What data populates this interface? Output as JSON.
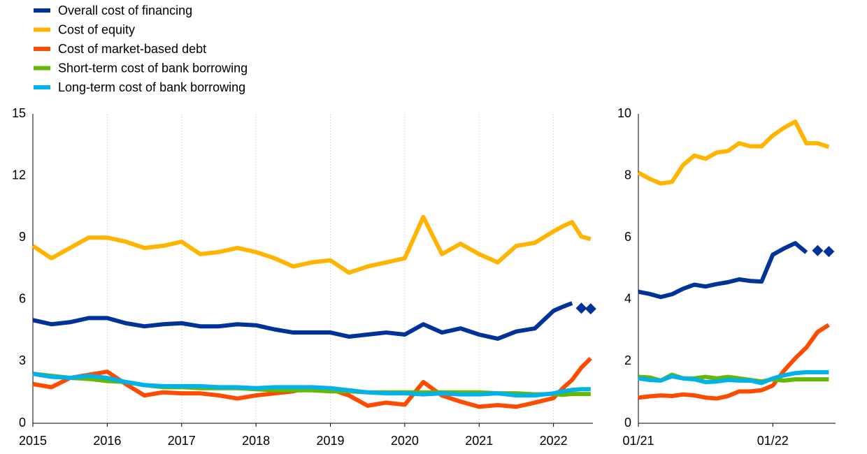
{
  "chart_data": [
    {
      "type": "line",
      "x": [
        2015,
        2015.25,
        2015.5,
        2015.75,
        2016,
        2016.25,
        2016.5,
        2016.75,
        2017,
        2017.25,
        2017.5,
        2017.75,
        2018,
        2018.25,
        2018.5,
        2018.75,
        2019,
        2019.25,
        2019.5,
        2019.75,
        2020,
        2020.25,
        2020.5,
        2020.75,
        2021,
        2021.25,
        2021.5,
        2021.75,
        2022,
        2022.125,
        2022.25,
        2022.375,
        2022.5
      ],
      "xlim": [
        2015,
        2022.53
      ],
      "xticks": [
        2015,
        2016,
        2017,
        2018,
        2019,
        2020,
        2021,
        2022
      ],
      "ylim": [
        0,
        15
      ],
      "yticks": [
        0,
        3,
        6,
        9,
        12,
        15
      ],
      "grid": true,
      "series": [
        {
          "name": "Overall cost of financing",
          "color": "#003299",
          "values": [
            5.0,
            4.8,
            4.9,
            5.1,
            5.1,
            4.85,
            4.7,
            4.8,
            4.85,
            4.7,
            4.7,
            4.8,
            4.75,
            4.55,
            4.4,
            4.4,
            4.4,
            4.2,
            4.3,
            4.4,
            4.3,
            4.8,
            4.4,
            4.6,
            4.3,
            4.1,
            4.45,
            4.6,
            5.45,
            5.65,
            5.82,
            null,
            null
          ],
          "markers": [
            null,
            null,
            null,
            null,
            null,
            null,
            null,
            null,
            null,
            null,
            null,
            null,
            null,
            null,
            null,
            null,
            null,
            null,
            null,
            null,
            null,
            null,
            null,
            null,
            null,
            null,
            null,
            null,
            null,
            null,
            null,
            5.58,
            5.55
          ]
        },
        {
          "name": "Cost of equity",
          "color": "#ffb400",
          "values": [
            8.6,
            8.0,
            8.5,
            9.0,
            9.0,
            8.8,
            8.5,
            8.6,
            8.8,
            8.2,
            8.3,
            8.5,
            8.3,
            8.0,
            7.6,
            7.8,
            7.9,
            7.3,
            7.6,
            7.8,
            8.0,
            10.0,
            8.2,
            8.7,
            8.2,
            7.8,
            8.6,
            8.75,
            9.3,
            9.55,
            9.75,
            9.05,
            8.93
          ]
        },
        {
          "name": "Cost of market-based debt",
          "color": "#ff4b00",
          "values": [
            1.9,
            1.75,
            2.2,
            2.35,
            2.5,
            1.9,
            1.35,
            1.5,
            1.45,
            1.45,
            1.35,
            1.2,
            1.35,
            1.45,
            1.55,
            1.75,
            1.65,
            1.35,
            0.85,
            1.0,
            0.9,
            2.0,
            1.35,
            1.05,
            0.8,
            0.88,
            0.8,
            1.0,
            1.22,
            1.7,
            2.1,
            2.7,
            3.15
          ]
        },
        {
          "name": "Short-term cost of bank borrowing",
          "color": "#65b800",
          "values": [
            2.4,
            2.3,
            2.2,
            2.15,
            2.05,
            2.0,
            1.85,
            1.75,
            1.75,
            1.7,
            1.7,
            1.7,
            1.65,
            1.6,
            1.6,
            1.6,
            1.55,
            1.55,
            1.5,
            1.5,
            1.5,
            1.5,
            1.5,
            1.5,
            1.5,
            1.45,
            1.45,
            1.4,
            1.42,
            1.38,
            1.42,
            1.42,
            1.42
          ]
        },
        {
          "name": "Long-term cost of bank borrowing",
          "color": "#00b1ea",
          "values": [
            2.4,
            2.25,
            2.2,
            2.3,
            2.2,
            2.0,
            1.85,
            1.8,
            1.8,
            1.8,
            1.75,
            1.75,
            1.7,
            1.75,
            1.75,
            1.75,
            1.7,
            1.6,
            1.5,
            1.45,
            1.45,
            1.4,
            1.45,
            1.4,
            1.4,
            1.45,
            1.35,
            1.35,
            1.45,
            1.55,
            1.62,
            1.65,
            1.65
          ]
        }
      ]
    },
    {
      "type": "line",
      "categories": [
        "01/21",
        null,
        null,
        null,
        null,
        null,
        null,
        null,
        null,
        null,
        null,
        null,
        "01/22",
        null,
        null,
        null,
        null,
        null
      ],
      "ylim": [
        0,
        10
      ],
      "yticks": [
        0,
        2,
        4,
        6,
        8,
        10
      ],
      "grid": false,
      "series": [
        {
          "color": "#003299",
          "values": [
            4.25,
            4.18,
            4.08,
            4.17,
            4.35,
            4.48,
            4.42,
            4.5,
            4.56,
            4.65,
            4.6,
            4.58,
            5.45,
            5.65,
            5.82,
            5.52,
            null,
            null
          ],
          "markers": [
            null,
            null,
            null,
            null,
            null,
            null,
            null,
            null,
            null,
            null,
            null,
            null,
            null,
            null,
            null,
            null,
            5.58,
            5.55
          ]
        },
        {
          "color": "#ffb400",
          "values": [
            8.1,
            7.9,
            7.75,
            7.8,
            8.35,
            8.65,
            8.55,
            8.75,
            8.8,
            9.05,
            8.95,
            8.95,
            9.3,
            9.55,
            9.75,
            9.05,
            9.05,
            8.93
          ]
        },
        {
          "color": "#ff4b00",
          "values": [
            0.83,
            0.87,
            0.9,
            0.88,
            0.93,
            0.9,
            0.83,
            0.8,
            0.88,
            1.03,
            1.03,
            1.07,
            1.22,
            1.7,
            2.1,
            2.45,
            2.95,
            3.18
          ]
        },
        {
          "color": "#65b800",
          "values": [
            1.5,
            1.48,
            1.38,
            1.57,
            1.45,
            1.45,
            1.5,
            1.45,
            1.5,
            1.45,
            1.4,
            1.35,
            1.42,
            1.38,
            1.42,
            1.42,
            1.42,
            1.42
          ]
        },
        {
          "color": "#00b1ea",
          "values": [
            1.45,
            1.4,
            1.38,
            1.52,
            1.45,
            1.42,
            1.33,
            1.35,
            1.4,
            1.38,
            1.38,
            1.3,
            1.45,
            1.55,
            1.62,
            1.65,
            1.65,
            1.65
          ]
        }
      ]
    }
  ]
}
